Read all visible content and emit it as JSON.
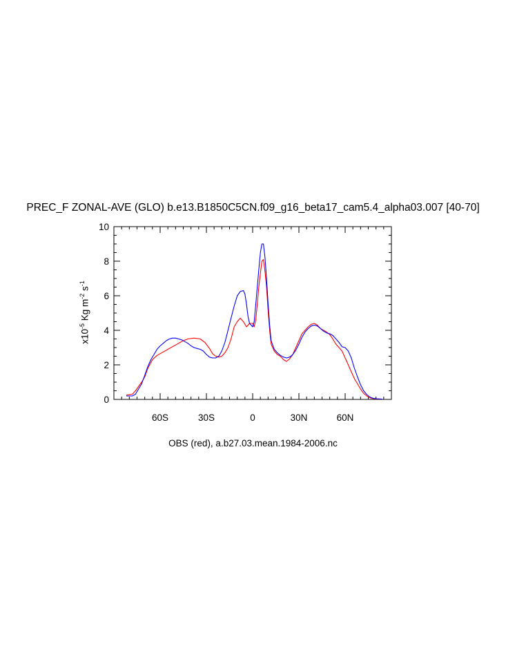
{
  "chart_data": {
    "type": "line",
    "title": "PREC_F ZONAL-AVE (GLO) b.e13.B1850C5CN.f09_g16_beta17_cam5.4_alpha03.007 [40-70]",
    "xlabel": "OBS (red), a.b27.03.mean.1984-2006.nc",
    "ylabel": {
      "prefix": "x10",
      "exp1": "-5",
      "mid": " Kg m",
      "exp2": "-2",
      "mid2": " s",
      "exp3": "-1"
    },
    "xlim": [
      -90,
      90
    ],
    "ylim": [
      0,
      10
    ],
    "x_ticks": [
      {
        "value": -60,
        "label": "60S"
      },
      {
        "value": -30,
        "label": "30S"
      },
      {
        "value": 0,
        "label": "0"
      },
      {
        "value": 30,
        "label": "30N"
      },
      {
        "value": 60,
        "label": "60N"
      }
    ],
    "y_ticks": [
      {
        "value": 0,
        "label": "0"
      },
      {
        "value": 2,
        "label": "2"
      },
      {
        "value": 4,
        "label": "4"
      },
      {
        "value": 6,
        "label": "6"
      },
      {
        "value": 8,
        "label": "8"
      },
      {
        "value": 10,
        "label": "10"
      }
    ],
    "grid": false,
    "legend": "none",
    "series": [
      {
        "color": "#ff0000",
        "points": [
          [
            -82,
            0.25
          ],
          [
            -78,
            0.3
          ],
          [
            -76,
            0.5
          ],
          [
            -72,
            1.0
          ],
          [
            -70,
            1.3
          ],
          [
            -68,
            1.8
          ],
          [
            -65,
            2.3
          ],
          [
            -62,
            2.55
          ],
          [
            -58,
            2.75
          ],
          [
            -55,
            2.9
          ],
          [
            -50,
            3.15
          ],
          [
            -45,
            3.4
          ],
          [
            -42,
            3.5
          ],
          [
            -38,
            3.55
          ],
          [
            -34,
            3.5
          ],
          [
            -31,
            3.3
          ],
          [
            -28,
            2.95
          ],
          [
            -26,
            2.65
          ],
          [
            -24,
            2.5
          ],
          [
            -22,
            2.45
          ],
          [
            -20,
            2.5
          ],
          [
            -18,
            2.7
          ],
          [
            -16,
            3.0
          ],
          [
            -14,
            3.5
          ],
          [
            -12,
            4.2
          ],
          [
            -10,
            4.5
          ],
          [
            -8,
            4.7
          ],
          [
            -6,
            4.5
          ],
          [
            -4,
            4.2
          ],
          [
            -2,
            4.4
          ],
          [
            0,
            4.4
          ],
          [
            1,
            4.2
          ],
          [
            2,
            4.6
          ],
          [
            3,
            5.5
          ],
          [
            4,
            6.5
          ],
          [
            5,
            7.3
          ],
          [
            6,
            8.0
          ],
          [
            7,
            8.1
          ],
          [
            8,
            7.4
          ],
          [
            9,
            6.5
          ],
          [
            10,
            5.2
          ],
          [
            11,
            4.0
          ],
          [
            12,
            3.2
          ],
          [
            14,
            2.8
          ],
          [
            16,
            2.6
          ],
          [
            18,
            2.5
          ],
          [
            20,
            2.3
          ],
          [
            22,
            2.2
          ],
          [
            24,
            2.35
          ],
          [
            26,
            2.6
          ],
          [
            28,
            3.0
          ],
          [
            30,
            3.4
          ],
          [
            32,
            3.8
          ],
          [
            34,
            4.0
          ],
          [
            36,
            4.2
          ],
          [
            38,
            4.35
          ],
          [
            40,
            4.4
          ],
          [
            42,
            4.3
          ],
          [
            44,
            4.1
          ],
          [
            46,
            4.0
          ],
          [
            48,
            3.9
          ],
          [
            50,
            3.75
          ],
          [
            52,
            3.5
          ],
          [
            54,
            3.2
          ],
          [
            56,
            3.0
          ],
          [
            58,
            2.8
          ],
          [
            60,
            2.4
          ],
          [
            62,
            2.0
          ],
          [
            64,
            1.6
          ],
          [
            66,
            1.2
          ],
          [
            68,
            0.9
          ],
          [
            70,
            0.6
          ],
          [
            72,
            0.35
          ],
          [
            74,
            0.2
          ],
          [
            76,
            0.1
          ],
          [
            78,
            0.05
          ],
          [
            80,
            0.03
          ],
          [
            84,
            0.02
          ]
        ]
      },
      {
        "color": "#0000ff",
        "points": [
          [
            -82,
            0.2
          ],
          [
            -78,
            0.2
          ],
          [
            -76,
            0.3
          ],
          [
            -74,
            0.6
          ],
          [
            -72,
            0.9
          ],
          [
            -70,
            1.4
          ],
          [
            -68,
            1.9
          ],
          [
            -66,
            2.3
          ],
          [
            -64,
            2.6
          ],
          [
            -62,
            2.9
          ],
          [
            -60,
            3.1
          ],
          [
            -58,
            3.25
          ],
          [
            -56,
            3.4
          ],
          [
            -54,
            3.5
          ],
          [
            -52,
            3.55
          ],
          [
            -50,
            3.55
          ],
          [
            -48,
            3.5
          ],
          [
            -46,
            3.45
          ],
          [
            -44,
            3.35
          ],
          [
            -42,
            3.25
          ],
          [
            -40,
            3.1
          ],
          [
            -38,
            3.0
          ],
          [
            -36,
            2.95
          ],
          [
            -34,
            2.9
          ],
          [
            -32,
            2.8
          ],
          [
            -30,
            2.6
          ],
          [
            -28,
            2.45
          ],
          [
            -26,
            2.4
          ],
          [
            -24,
            2.4
          ],
          [
            -22,
            2.5
          ],
          [
            -20,
            2.8
          ],
          [
            -18,
            3.3
          ],
          [
            -16,
            4.0
          ],
          [
            -14,
            4.7
          ],
          [
            -12,
            5.4
          ],
          [
            -10,
            6.0
          ],
          [
            -8,
            6.25
          ],
          [
            -6,
            6.3
          ],
          [
            -5,
            6.1
          ],
          [
            -4,
            5.5
          ],
          [
            -3,
            4.8
          ],
          [
            -2,
            4.4
          ],
          [
            -1,
            4.3
          ],
          [
            0,
            4.2
          ],
          [
            1,
            4.5
          ],
          [
            2,
            5.5
          ],
          [
            3,
            6.5
          ],
          [
            4,
            7.5
          ],
          [
            5,
            8.5
          ],
          [
            6,
            9.0
          ],
          [
            7,
            9.0
          ],
          [
            8,
            8.2
          ],
          [
            9,
            7.0
          ],
          [
            10,
            5.6
          ],
          [
            11,
            4.3
          ],
          [
            12,
            3.4
          ],
          [
            14,
            2.9
          ],
          [
            16,
            2.7
          ],
          [
            18,
            2.55
          ],
          [
            20,
            2.45
          ],
          [
            22,
            2.4
          ],
          [
            24,
            2.45
          ],
          [
            26,
            2.6
          ],
          [
            28,
            2.85
          ],
          [
            30,
            3.2
          ],
          [
            32,
            3.6
          ],
          [
            34,
            3.9
          ],
          [
            36,
            4.1
          ],
          [
            38,
            4.25
          ],
          [
            40,
            4.3
          ],
          [
            42,
            4.25
          ],
          [
            44,
            4.1
          ],
          [
            46,
            3.95
          ],
          [
            48,
            3.85
          ],
          [
            50,
            3.8
          ],
          [
            52,
            3.7
          ],
          [
            54,
            3.5
          ],
          [
            56,
            3.3
          ],
          [
            58,
            3.05
          ],
          [
            60,
            3.0
          ],
          [
            62,
            2.8
          ],
          [
            64,
            2.4
          ],
          [
            66,
            1.8
          ],
          [
            68,
            1.3
          ],
          [
            70,
            0.85
          ],
          [
            72,
            0.5
          ],
          [
            74,
            0.28
          ],
          [
            76,
            0.14
          ],
          [
            78,
            0.07
          ],
          [
            80,
            0.04
          ],
          [
            84,
            0.02
          ]
        ]
      }
    ]
  }
}
